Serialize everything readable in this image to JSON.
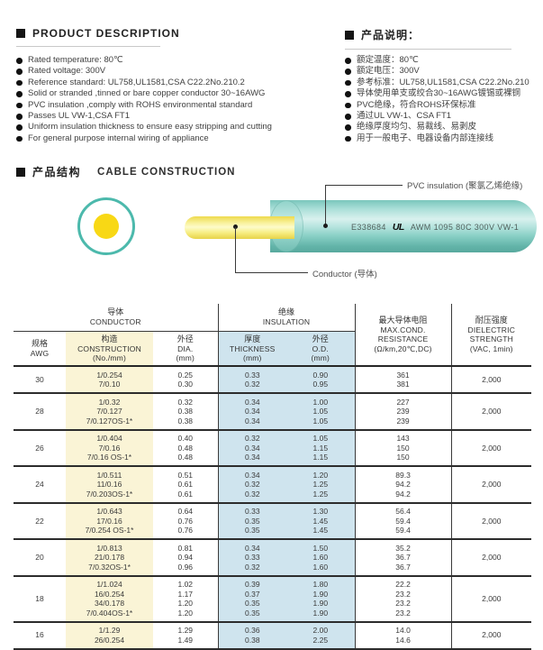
{
  "colors": {
    "insulation_teal": "#4cb9ac",
    "conductor_yellow": "#f8d815",
    "table_construction_bg": "#faf4d6",
    "table_insulation_bg": "#cfe4ee"
  },
  "product_description": {
    "title": "PRODUCT DESCRIPTION",
    "items": [
      "Rated temperature: 80℃",
      "Rated voltage: 300V",
      "Reference standard: UL758,UL1581,CSA C22.2No.210.2",
      "Solid or stranded ,tinned or bare copper conductor 30~16AWG",
      "PVC insulation ,comply with ROHS environmental standard",
      "Passes UL VW-1,CSA FT1",
      "Uniform insulation thickness to ensure easy stripping and cutting",
      "For general purpose internal wiring of appliance"
    ]
  },
  "product_notes": {
    "title": "产品说明：",
    "items": [
      "额定温度：80℃",
      "额定电压：300V",
      "参考标准：UL758,UL1581,CSA C22.2No.210",
      "导体使用单支或绞合30~16AWG镀锡或裸铜",
      "PVC绝缘，符合ROHS环保标准",
      "通过UL VW-1、CSA FT1",
      "绝缘厚度均匀、易裁线、易剥皮",
      "用于一般电子、电器设备内部连接线"
    ]
  },
  "construction_section": {
    "title_zh": "产品结构",
    "title_en": "CABLE CONSTRUCTION",
    "label_insulation": "PVC insulation (聚氯乙烯绝缘)",
    "label_conductor": "Conductor (导体)",
    "marking": {
      "cert_no": "E338684",
      "ul_logo": "UL",
      "text": "AWM 1095 80C 300V VW-1"
    }
  },
  "table": {
    "groups": {
      "conductor": {
        "zh": "导体",
        "en": "CONDUCTOR"
      },
      "insulation": {
        "zh": "绝缘",
        "en": "INSULATION"
      }
    },
    "columns": {
      "awg": {
        "zh": "规格",
        "en": "AWG"
      },
      "construction": {
        "zh": "构造",
        "en": "CONSTRUCTION",
        "unit": "(No./mm)"
      },
      "dia": {
        "zh": "外径",
        "en": "DIA.",
        "unit": "(mm)"
      },
      "thickness": {
        "zh": "厚度",
        "en": "THICKNESS",
        "unit": "(mm)"
      },
      "od": {
        "zh": "外径",
        "en": "O.D.",
        "unit": "(mm)"
      },
      "resistance": {
        "lines": [
          "最大导体电阻",
          "MAX.COND.",
          "RESISTANCE",
          "(Ω/km,20℃,DC)"
        ]
      },
      "dielectric": {
        "lines": [
          "耐压强度",
          "DIELECTRIC",
          "STRENGTH",
          "(VAC, 1min)"
        ]
      }
    },
    "rows": [
      {
        "awg": "30",
        "construction": [
          "1/0.254",
          "7/0.10"
        ],
        "dia": [
          "0.25",
          "0.30"
        ],
        "thickness": [
          "0.33",
          "0.32"
        ],
        "od": [
          "0.90",
          "0.95"
        ],
        "resistance": [
          "361",
          "381"
        ],
        "dielectric": "2,000"
      },
      {
        "awg": "28",
        "construction": [
          "1/0.32",
          "7/0.127",
          "7/0.127OS-1*"
        ],
        "dia": [
          "0.32",
          "0.38",
          "0.38"
        ],
        "thickness": [
          "0.34",
          "0.34",
          "0.34"
        ],
        "od": [
          "1.00",
          "1.05",
          "1.05"
        ],
        "resistance": [
          "227",
          "239",
          "239"
        ],
        "dielectric": "2,000"
      },
      {
        "awg": "26",
        "construction": [
          "1/0.404",
          "7/0.16",
          "7/0.16 OS-1*"
        ],
        "dia": [
          "0.40",
          "0.48",
          "0.48"
        ],
        "thickness": [
          "0.32",
          "0.34",
          "0.34"
        ],
        "od": [
          "1.05",
          "1.15",
          "1.15"
        ],
        "resistance": [
          "143",
          "150",
          "150"
        ],
        "dielectric": "2,000"
      },
      {
        "awg": "24",
        "construction": [
          "1/0.511",
          "11/0.16",
          "7/0.203OS-1*"
        ],
        "dia": [
          "0.51",
          "0.61",
          "0.61"
        ],
        "thickness": [
          "0.34",
          "0.32",
          "0.32"
        ],
        "od": [
          "1.20",
          "1.25",
          "1.25"
        ],
        "resistance": [
          "89.3",
          "94.2",
          "94.2"
        ],
        "dielectric": "2,000"
      },
      {
        "awg": "22",
        "construction": [
          "1/0.643",
          "17/0.16",
          "7/0.254 OS-1*"
        ],
        "dia": [
          "0.64",
          "0.76",
          "0.76"
        ],
        "thickness": [
          "0.33",
          "0.35",
          "0.35"
        ],
        "od": [
          "1.30",
          "1.45",
          "1.45"
        ],
        "resistance": [
          "56.4",
          "59.4",
          "59.4"
        ],
        "dielectric": "2,000"
      },
      {
        "awg": "20",
        "construction": [
          "1/0.813",
          "21/0.178",
          "7/0.32OS-1*"
        ],
        "dia": [
          "0.81",
          "0.94",
          "0.96"
        ],
        "thickness": [
          "0.34",
          "0.33",
          "0.32"
        ],
        "od": [
          "1.50",
          "1.60",
          "1.60"
        ],
        "resistance": [
          "35.2",
          "36.7",
          "36.7"
        ],
        "dielectric": "2,000"
      },
      {
        "awg": "18",
        "construction": [
          "1/1.024",
          "16/0.254",
          "34/0.178",
          "7/0.404OS-1*"
        ],
        "dia": [
          "1.02",
          "1.17",
          "1.20",
          "1.20"
        ],
        "thickness": [
          "0.39",
          "0.37",
          "0.35",
          "0.35"
        ],
        "od": [
          "1.80",
          "1.90",
          "1.90",
          "1.90"
        ],
        "resistance": [
          "22.2",
          "23.2",
          "23.2",
          "23.2"
        ],
        "dielectric": "2,000"
      },
      {
        "awg": "16",
        "construction": [
          "1/1.29",
          "26/0.254"
        ],
        "dia": [
          "1.29",
          "1.49"
        ],
        "thickness": [
          "0.36",
          "0.38"
        ],
        "od": [
          "2.00",
          "2.25"
        ],
        "resistance": [
          "14.0",
          "14.6"
        ],
        "dielectric": "2,000"
      }
    ]
  }
}
